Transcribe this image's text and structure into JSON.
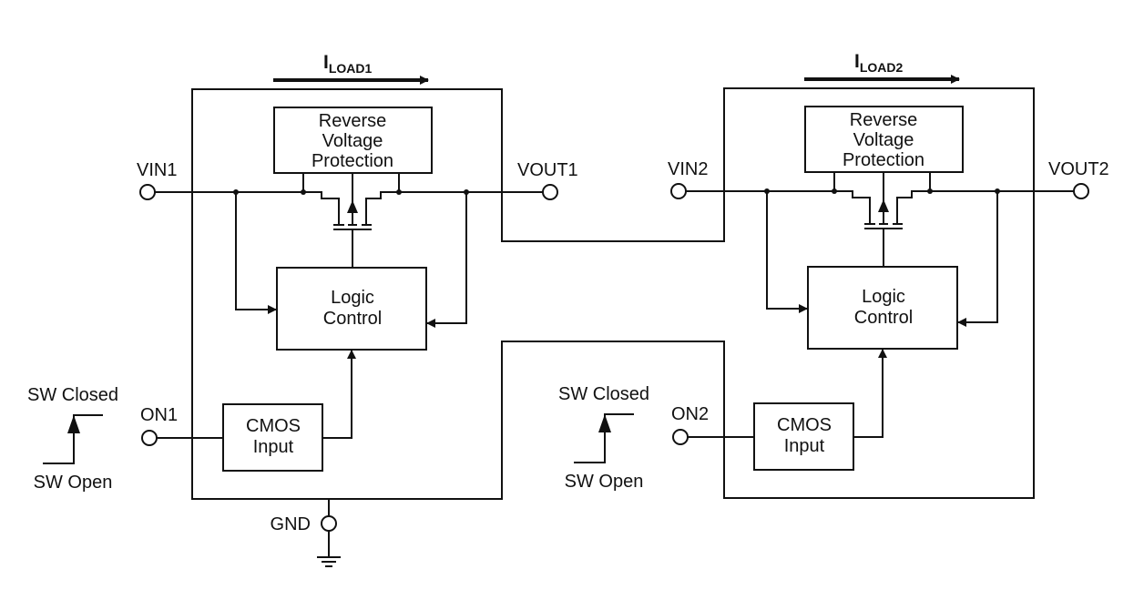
{
  "units": [
    {
      "load_label_main": "I",
      "load_label_sub": "LOAD1",
      "reverse_protection": [
        "Reverse",
        "Voltage",
        "Protection"
      ],
      "logic": [
        "Logic",
        "Control"
      ],
      "cmos": [
        "CMOS",
        "Input"
      ],
      "vin": "VIN1",
      "vout": "VOUT1",
      "on": "ON1",
      "sw_closed": "SW Closed",
      "sw_open": "SW Open"
    },
    {
      "load_label_main": "I",
      "load_label_sub": "LOAD2",
      "reverse_protection": [
        "Reverse",
        "Voltage",
        "Protection"
      ],
      "logic": [
        "Logic",
        "Control"
      ],
      "cmos": [
        "CMOS",
        "Input"
      ],
      "vin": "VIN2",
      "vout": "VOUT2",
      "on": "ON2",
      "sw_closed": "SW Closed",
      "sw_open": "SW Open"
    }
  ],
  "gnd": "GND"
}
